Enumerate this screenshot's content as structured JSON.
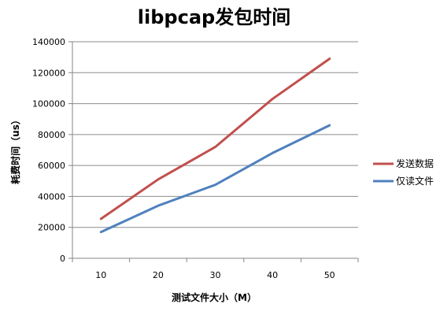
{
  "chart_data": {
    "type": "line",
    "title": "libpcap发包时间",
    "xlabel": "测试文件大小（M）",
    "ylabel": "耗费时间（us）",
    "x": [
      10,
      20,
      30,
      40,
      50
    ],
    "ylim": [
      0,
      140000
    ],
    "yticks": [
      0,
      20000,
      40000,
      60000,
      80000,
      100000,
      120000,
      140000
    ],
    "grid": true,
    "legend": "right",
    "series": [
      {
        "name": "发送数据",
        "color": "#c0504d",
        "values": [
          25500,
          51000,
          72000,
          103000,
          129000
        ]
      },
      {
        "name": "仅读文件",
        "color": "#4f81bd",
        "values": [
          17000,
          34000,
          47500,
          68000,
          86000
        ]
      }
    ]
  }
}
